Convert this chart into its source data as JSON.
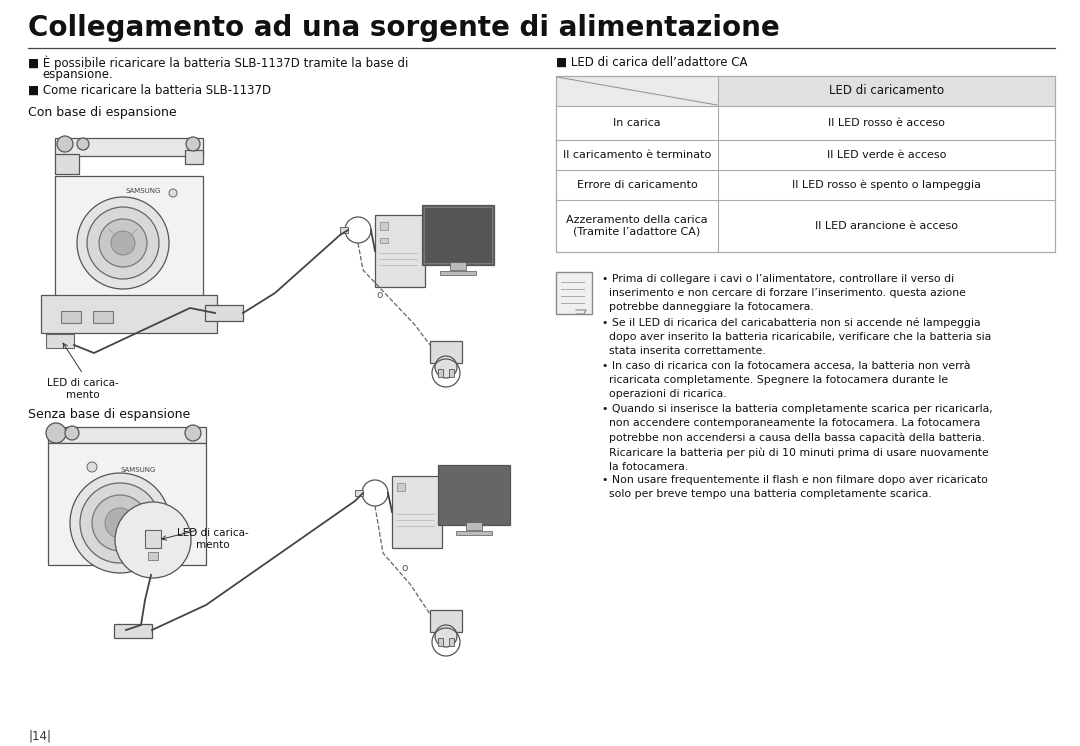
{
  "title": "Collegamento ad una sorgente di alimentazione",
  "bg_color": "#ffffff",
  "bullet1_line1": "■ È possibile ricaricare la batteria SLB-1137D tramite la base di",
  "bullet1_line2": "   espansione.",
  "bullet2": "■ Come ricaricare la batteria SLB-1137D",
  "section1_title": "Con base di espansione",
  "section2_title": "Senza base di espansione",
  "led_label_top": "■ LED di carica dell’adattore CA",
  "table_header_right": "LED di caricamento",
  "table_rows": [
    [
      "In carica",
      "Il LED rosso è acceso"
    ],
    [
      "Il caricamento è terminato",
      "Il LED verde è acceso"
    ],
    [
      "Errore di caricamento",
      "Il LED rosso è spento o lampeggia"
    ],
    [
      "Azzeramento della carica\n(Tramite l’adattore CA)",
      "Il LED arancione è acceso"
    ]
  ],
  "led_label1": "LED di carica-\nmento",
  "led_label2": "LED di carica-\nmento",
  "note_bullets": [
    "• Prima di collegare i cavi o l’alimentatore, controllare il verso di\n  inserimento e non cercare di forzare l’inserimento. questa azione\n  potrebbe danneggiare la fotocamera.",
    "• Se il LED di ricarica del caricabatteria non si accende né lampeggia\n  dopo aver inserito la batteria ricaricabile, verificare che la batteria sia\n  stata inserita correttamente.",
    "• In caso di ricarica con la fotocamera accesa, la batteria non verrà\n  ricaricata completamente. Spegnere la fotocamera durante le\n  operazioni di ricarica.",
    "• Quando si inserisce la batteria completamente scarica per ricaricarla,\n  non accendere contemporaneamente la fotocamera. La fotocamera\n  potrebbe non accendersi a causa della bassa capacità della batteria.\n  Ricaricare la batteria per più di 10 minuti prima di usare nuovamente\n  la fotocamera.",
    "• Non usare frequentemente il flash e non filmare dopo aver ricaricato\n  solo per breve tempo una batteria completamente scarica."
  ],
  "page_num": "14"
}
